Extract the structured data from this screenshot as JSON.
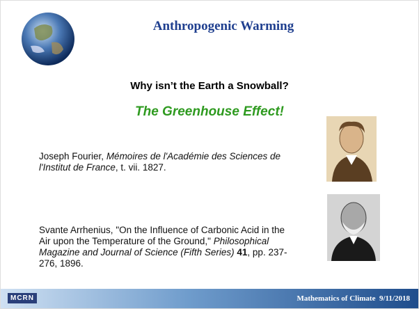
{
  "header": {
    "title": "Anthropogenic Warming"
  },
  "question": "Why isn’t the Earth a Snowball?",
  "answer": "The Greenhouse Effect!",
  "citations": [
    {
      "author": "Joseph Fourier, ",
      "work": "Mémoires de l'Académie des Sciences de l'Institut de France",
      "rest": ", t. vii. 1827."
    },
    {
      "author": "Svante Arrhenius, \"On the Influence of Carbonic Acid in the Air upon the Temperature of the Ground,\" ",
      "work": "Philosophical Magazine and Journal of Science (Fifth Series) ",
      "volume": "41",
      "rest": ", pp. 237-276, 1896."
    }
  ],
  "footer": {
    "logo": "MCRN",
    "title": "Mathematics of Climate",
    "date": "9/11/2018"
  }
}
